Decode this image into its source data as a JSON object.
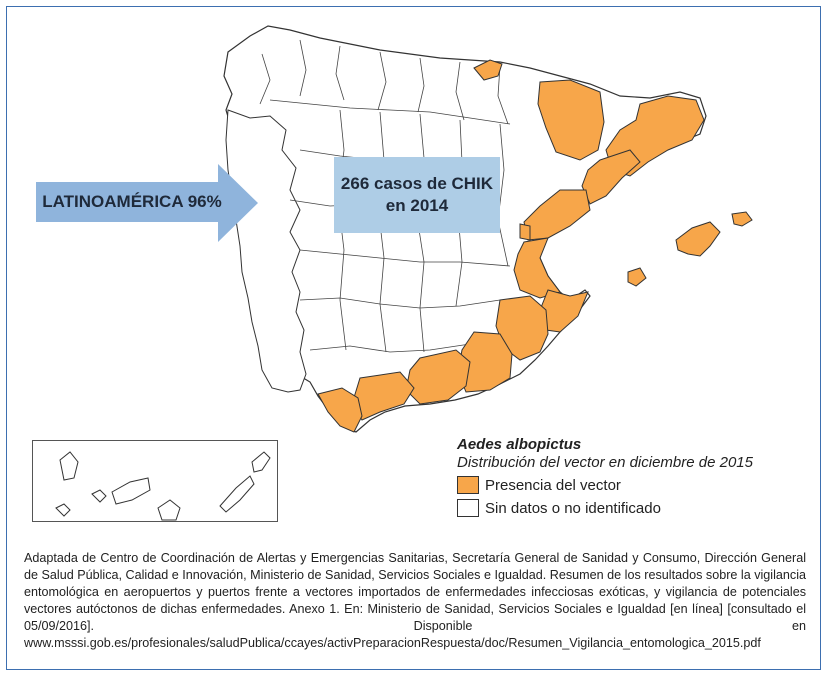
{
  "map": {
    "arrow_label": "LATINOAMÉRICA 96%",
    "cases_line1": "266 casos de CHIK",
    "cases_line2": "en 2014"
  },
  "legend": {
    "species": "Aedes albopictus",
    "subtitle": "Distribución del vector en diciembre de 2015",
    "items": [
      {
        "label": "Presencia del vector",
        "color": "#f7a64a"
      },
      {
        "label": "Sin datos o no identificado",
        "color": "#ffffff"
      }
    ]
  },
  "colors": {
    "presence": "#f7a64a",
    "no_data": "#ffffff",
    "arrow": "#8fb4dc",
    "cases_box": "#aecde6",
    "frame": "#3d6fb0"
  },
  "caption": "Adaptada de Centro de Coordinación de Alertas y Emergencias Sanitarias, Secretaría General de Sanidad y Consumo, Dirección General de Salud Pública, Calidad e Innovación, Ministerio de Sanidad, Servicios Sociales e Igualdad. Resumen de los resultados sobre la vigilancia entomológica en aeropuertos y puertos frente a vectores importados de enfermedades infecciosas exóticas, y vigilancia de potenciales vectores autóctonos de dichas enfermedades. Anexo 1. En: Ministerio de Sanidad, Servicios Sociales e Igualdad [en línea] [consultado el 05/09/2016]. Disponible en www.msssi.gob.es/profesionales/saludPublica/ccayes/activPreparacionRespuesta/doc/Resumen_Vigilancia_entomologica_2015.pdf"
}
